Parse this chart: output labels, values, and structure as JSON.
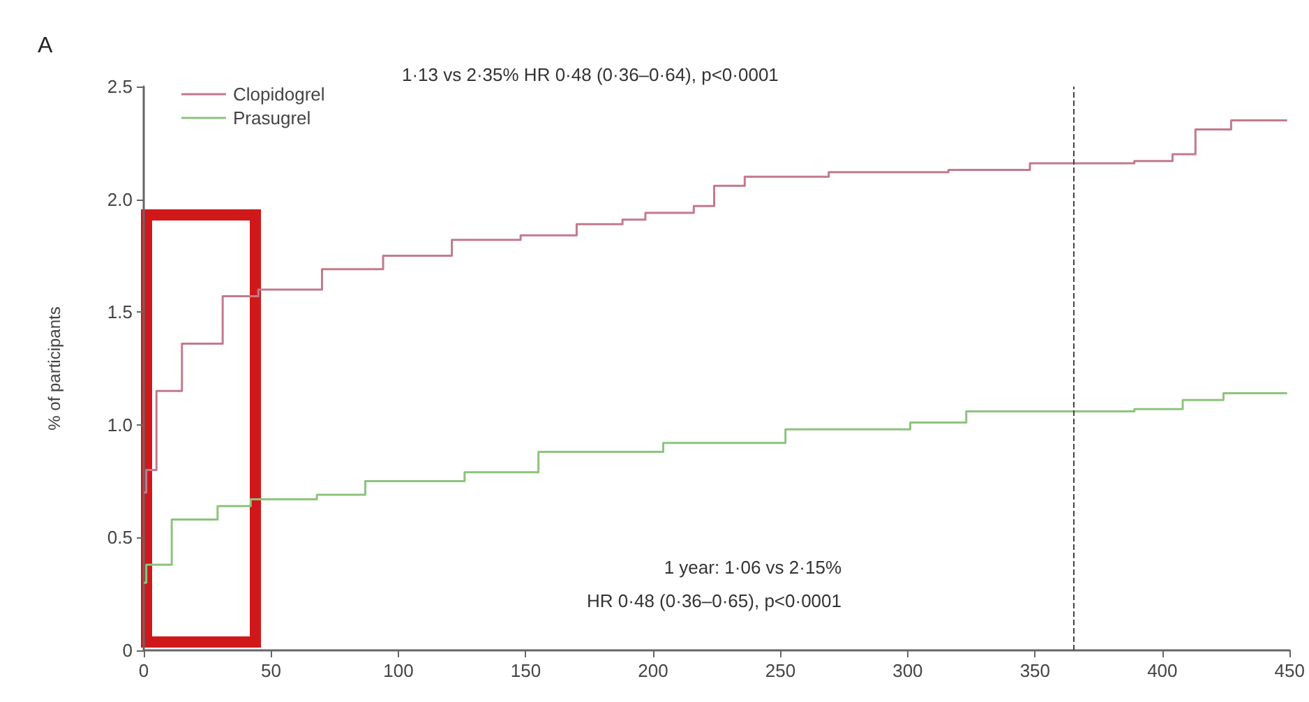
{
  "chart_data": {
    "type": "step",
    "title": "A",
    "ylabel": "% of participants",
    "x": [
      0,
      1,
      5,
      15,
      31,
      45,
      70,
      94,
      121,
      148,
      170,
      188,
      197,
      216,
      224,
      236,
      269,
      316,
      348,
      389,
      404,
      413,
      427,
      449
    ],
    "series": [
      {
        "name": "Clopidogrel",
        "color": "#c27a8c",
        "values": [
          0.7,
          0.8,
          1.15,
          1.36,
          1.57,
          1.6,
          1.69,
          1.75,
          1.82,
          1.84,
          1.89,
          1.91,
          1.94,
          1.97,
          2.06,
          2.1,
          2.12,
          2.13,
          2.16,
          2.17,
          2.2,
          2.31,
          2.35,
          2.35
        ]
      },
      {
        "name": "Prasugrel",
        "color": "#8cc47c",
        "x": [
          0,
          1,
          11,
          29,
          42,
          68,
          87,
          126,
          155,
          204,
          252,
          301,
          323,
          389,
          408,
          424,
          449
        ],
        "values": [
          0.3,
          0.38,
          0.58,
          0.64,
          0.67,
          0.69,
          0.75,
          0.79,
          0.88,
          0.92,
          0.98,
          1.01,
          1.06,
          1.07,
          1.11,
          1.14,
          1.14
        ]
      }
    ],
    "xlim": [
      0,
      450
    ],
    "xticks": [
      0,
      50,
      100,
      150,
      200,
      250,
      300,
      350,
      400,
      450
    ],
    "ylim": [
      0,
      2.5
    ],
    "yticks": [
      0,
      0.5,
      {
        "value": 1,
        "label": "1.0"
      },
      1.5,
      {
        "value": 2,
        "label": "2.0"
      },
      2.5
    ],
    "ref_lines": [
      {
        "axis": "x",
        "value": 365,
        "color": "#444444",
        "line_style": "dashed"
      }
    ],
    "annotations": [
      "1·13 vs 2·35% HR 0·48 (0·36–0·64), p<0·0001",
      "1 year: 1·06 vs 2·15%",
      "HR 0·48 (0·36–0·65), p<0·0001"
    ],
    "legend": "top left",
    "grid": false,
    "marker": "none",
    "line_style": "solid"
  }
}
